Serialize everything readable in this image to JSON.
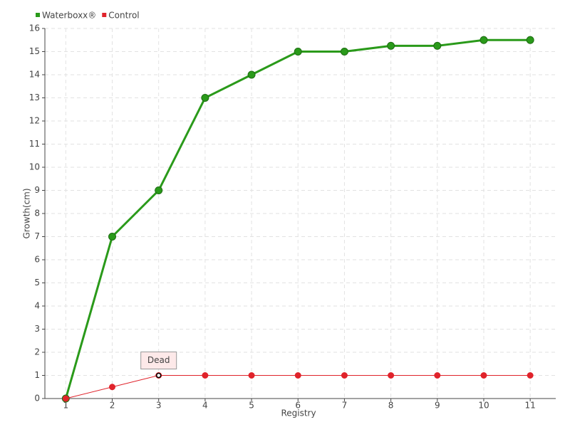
{
  "chart_data": {
    "type": "line",
    "x_label": "Registry",
    "y_label": "Growth(cm)",
    "categories": [
      "1",
      "2",
      "3",
      "4",
      "5",
      "6",
      "7",
      "8",
      "9",
      "10",
      "11"
    ],
    "series": [
      {
        "name": "Waterboxx®",
        "color": "#2a9a1a",
        "values": [
          0,
          7,
          9,
          13,
          14,
          15,
          15,
          15.25,
          15.25,
          15.5,
          15.5
        ]
      },
      {
        "name": "Control",
        "color": "#e0232b",
        "values": [
          0,
          0.5,
          1,
          1,
          1,
          1,
          1,
          1,
          1,
          1,
          1
        ]
      }
    ],
    "annotations": [
      {
        "text": "Dead",
        "x": "3"
      }
    ],
    "ylim": [
      0,
      16
    ],
    "yticks": [
      0,
      1,
      2,
      3,
      4,
      5,
      6,
      7,
      8,
      9,
      10,
      11,
      12,
      13,
      14,
      15,
      16
    ],
    "grid": true,
    "legend": "top-left"
  }
}
